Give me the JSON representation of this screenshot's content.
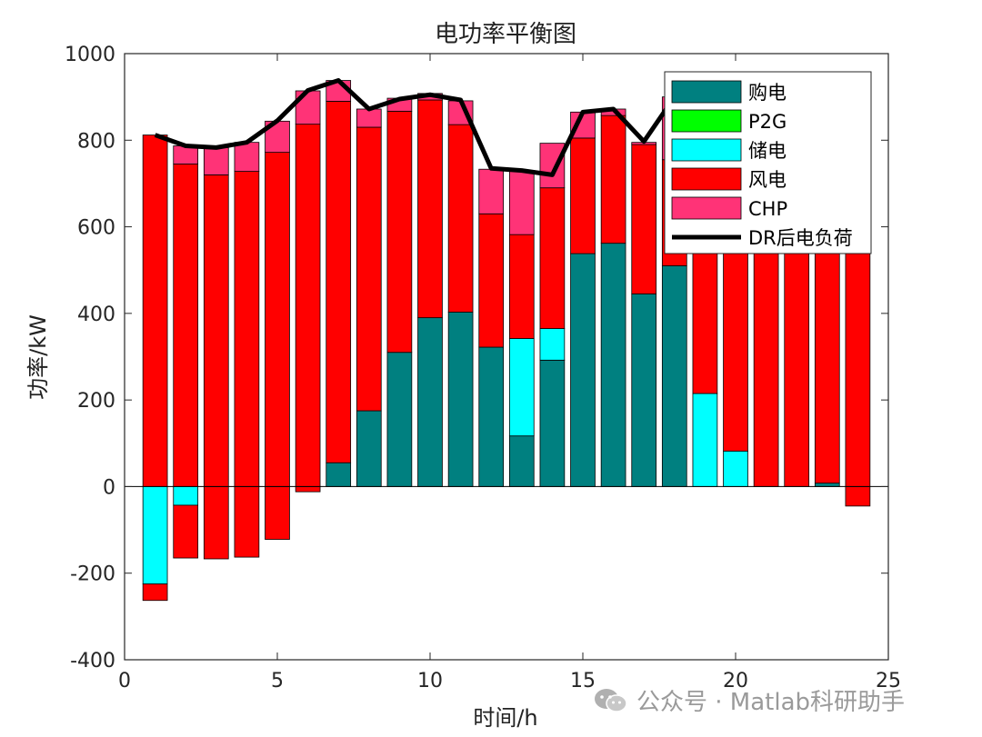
{
  "chart_data": {
    "type": "bar",
    "title": "电功率平衡图",
    "xlabel": "时间/h",
    "ylabel": "功率/kW",
    "xlim": [
      0,
      25
    ],
    "ylim": [
      -400,
      1000
    ],
    "xticks": [
      0,
      5,
      10,
      15,
      20,
      25
    ],
    "yticks": [
      -400,
      -200,
      0,
      200,
      400,
      600,
      800,
      1000
    ],
    "grid": false,
    "legend_position": "top-right",
    "x": [
      1,
      2,
      3,
      4,
      5,
      6,
      7,
      8,
      9,
      10,
      11,
      12,
      13,
      14,
      15,
      16,
      17,
      18,
      19,
      20,
      21,
      22,
      23,
      24
    ],
    "series": [
      {
        "name": "购电",
        "color": "#008080",
        "values": [
          0,
          0,
          0,
          0,
          0,
          0,
          55,
          175,
          310,
          390,
          403,
          322,
          117,
          292,
          538,
          562,
          445,
          510,
          0,
          0,
          0,
          0,
          8,
          0
        ]
      },
      {
        "name": "P2G",
        "color": "#00ff00",
        "values": [
          0,
          0,
          0,
          0,
          0,
          0,
          0,
          0,
          0,
          0,
          0,
          0,
          0,
          0,
          0,
          0,
          0,
          0,
          0,
          0,
          0,
          0,
          0,
          0
        ]
      },
      {
        "name": "储电",
        "color": "#00ffff",
        "values": [
          -225,
          -43,
          0,
          0,
          0,
          0,
          0,
          0,
          0,
          0,
          0,
          0,
          225,
          73,
          0,
          0,
          0,
          0,
          215,
          82,
          0,
          0,
          0,
          0
        ]
      },
      {
        "name": "风电",
        "color": "#ff0000",
        "values": [
          812,
          745,
          720,
          728,
          772,
          837,
          835,
          655,
          557,
          503,
          433,
          308,
          240,
          325,
          267,
          295,
          345,
          245,
          430,
          560,
          600,
          620,
          620,
          640
        ]
      },
      {
        "name": "CHP",
        "color": "#ff3377",
        "values": [
          0,
          42,
          63,
          67,
          72,
          77,
          48,
          42,
          30,
          15,
          55,
          103,
          148,
          103,
          60,
          15,
          5,
          145,
          180,
          175,
          175,
          175,
          175,
          175
        ]
      }
    ],
    "negatives": {
      "风电": [
        -38,
        -122,
        -167,
        -163,
        -122,
        -12,
        0,
        0,
        0,
        0,
        0,
        0,
        0,
        0,
        0,
        0,
        0,
        0,
        0,
        0,
        0,
        0,
        0,
        -45
      ]
    },
    "line": {
      "name": "DR后电负荷",
      "color": "#000000",
      "values": [
        812,
        787,
        783,
        795,
        845,
        915,
        938,
        872,
        895,
        905,
        893,
        735,
        730,
        720,
        865,
        872,
        797,
        900,
        825,
        815,
        800,
        795,
        805,
        815
      ]
    },
    "legend": [
      "购电",
      "P2G",
      "储电",
      "风电",
      "CHP",
      "DR后电负荷"
    ]
  },
  "watermark": {
    "text": "公众号 · Matlab科研助手"
  }
}
